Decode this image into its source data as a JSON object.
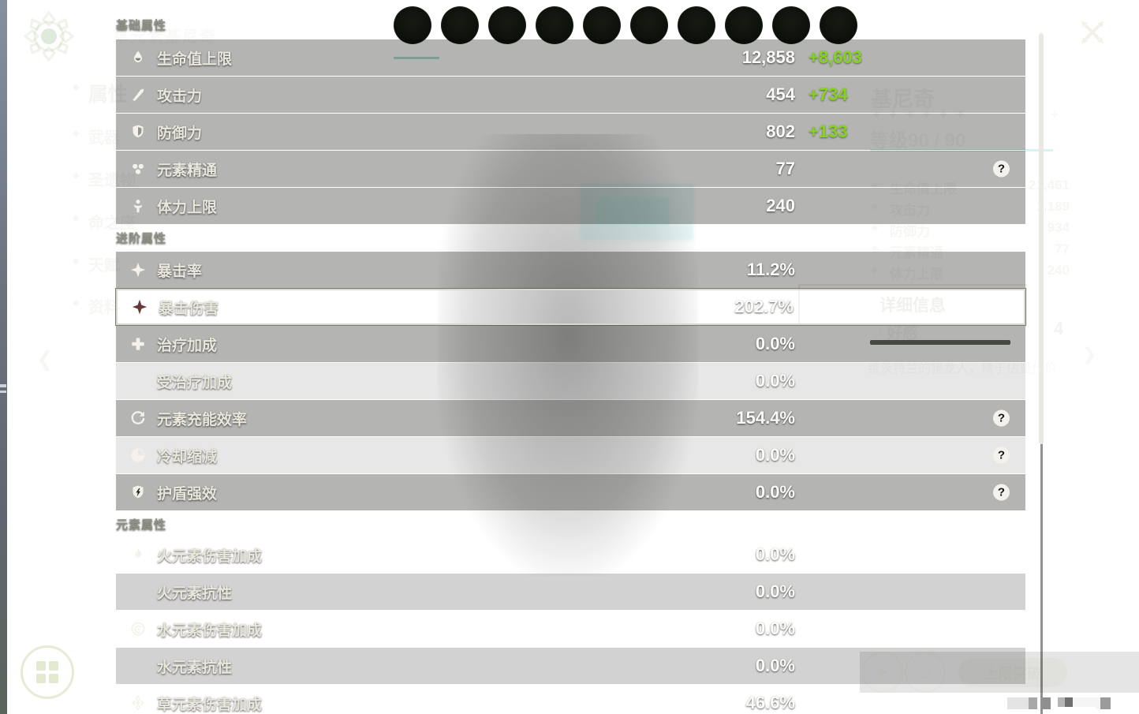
{
  "panel": {
    "sections": [
      {
        "title": "基础属性",
        "rows": [
          {
            "icon": "hp-icon",
            "label": "生命值上限",
            "value": "12,858",
            "bonus": "+8,603"
          },
          {
            "icon": "atk-icon",
            "label": "攻击力",
            "value": "454",
            "bonus": "+734"
          },
          {
            "icon": "def-icon",
            "label": "防御力",
            "value": "802",
            "bonus": "+133"
          },
          {
            "icon": "em-icon",
            "label": "元素精通",
            "value": "77",
            "help": true
          },
          {
            "icon": "stamina-icon",
            "label": "体力上限",
            "value": "240"
          }
        ]
      },
      {
        "title": "进阶属性",
        "rows": [
          {
            "icon": "crit-rate-icon",
            "label": "暴击率",
            "value": "11.2%"
          },
          {
            "icon": "crit-dmg-icon",
            "label": "暴击伤害",
            "value": "202.7%",
            "highlighted": true
          },
          {
            "icon": "healing-icon",
            "label": "治疗加成",
            "value": "0.0%"
          },
          {
            "icon": null,
            "label": "受治疗加成",
            "value": "0.0%"
          },
          {
            "icon": "recharge-icon",
            "label": "元素充能效率",
            "value": "154.4%",
            "help": true
          },
          {
            "icon": "cooldown-icon",
            "label": "冷却缩减",
            "value": "0.0%",
            "help": true
          },
          {
            "icon": "shield-strength-icon",
            "label": "护盾强效",
            "value": "0.0%",
            "help": true
          }
        ]
      },
      {
        "title": "元素属性",
        "rows": [
          {
            "icon": "pyro-icon",
            "label": "火元素伤害加成",
            "value": "0.0%"
          },
          {
            "icon": null,
            "label": "火元素抗性",
            "value": "0.0%"
          },
          {
            "icon": "hydro-icon",
            "label": "水元素伤害加成",
            "value": "0.0%"
          },
          {
            "icon": null,
            "label": "水元素抗性",
            "value": "0.0%"
          },
          {
            "icon": "dendro-icon",
            "label": "草元素伤害加成",
            "value": "46.6%"
          }
        ]
      }
    ],
    "help_glyph": "?"
  },
  "background": {
    "element_label": "草元素基尼奇",
    "sidebar": [
      {
        "name": "attributes",
        "label": "属性",
        "active": true
      },
      {
        "name": "weapon",
        "label": "武器"
      },
      {
        "name": "artifacts",
        "label": "圣遗物"
      },
      {
        "name": "constellation",
        "label": "命之座"
      },
      {
        "name": "talents",
        "label": "天赋"
      },
      {
        "name": "profile",
        "label": "资料"
      }
    ],
    "char_panel": {
      "name": "基尼奇",
      "stars": "✦✦✦✦✦✦",
      "level": "等级90 / 90",
      "stats": [
        {
          "label": "生命值上限",
          "value": "21,461"
        },
        {
          "label": "攻击力",
          "value": "1,189"
        },
        {
          "label": "防御力",
          "value": "934"
        },
        {
          "label": "元素精通",
          "value": "77"
        },
        {
          "label": "体力上限",
          "value": "240"
        }
      ],
      "details_button": "详细信息",
      "friendship_label": "好感",
      "friendship_level": "4",
      "description": "维茨特兰的猎龙人，精于估量代价"
    },
    "ascend_button": "上限突破",
    "back_glyph": "❮",
    "friend_arrow_glyph": "❯",
    "heart_glyph": "♡",
    "sparkle_glyph": "✦"
  },
  "colors": {
    "bonus_green": "#84d41c",
    "highlight_border": "#d9d7cc",
    "scrollbar": "#e9e9e4",
    "teal_accent": "#4fb3ab"
  }
}
